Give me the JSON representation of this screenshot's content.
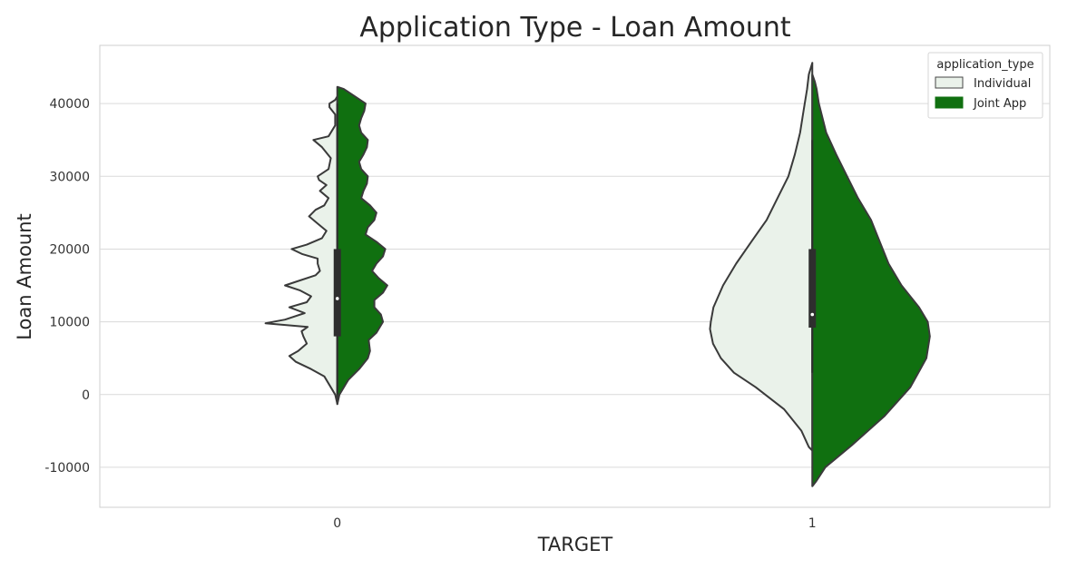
{
  "chart_data": {
    "type": "violin",
    "split": true,
    "title": "Application Type - Loan Amount",
    "xlabel": "TARGET",
    "ylabel": "Loan Amount",
    "categories": [
      "0",
      "1"
    ],
    "ylim": [
      -15500,
      48000
    ],
    "yticks": [
      -10000,
      0,
      10000,
      20000,
      30000,
      40000
    ],
    "ytick_labels": [
      "-10000",
      "0",
      "10000",
      "20000",
      "30000",
      "40000"
    ],
    "grid": true,
    "legend": {
      "title": "application_type",
      "position": "top-right",
      "entries": [
        "Individual",
        "Joint App"
      ]
    },
    "series": [
      {
        "name": "Individual",
        "color": "#eaf2ea",
        "side": "left",
        "violins": [
          {
            "category": "0",
            "y_min": -1300,
            "y_max": 41000,
            "profile": [
              [
                -1300,
                0.0
              ],
              [
                0,
                0.05
              ],
              [
                2500,
                0.3
              ],
              [
                3500,
                0.6
              ],
              [
                4500,
                0.95
              ],
              [
                5300,
                1.1
              ],
              [
                6000,
                0.9
              ],
              [
                7000,
                0.7
              ],
              [
                8000,
                0.78
              ],
              [
                8700,
                0.82
              ],
              [
                9300,
                0.68
              ],
              [
                9800,
                1.65
              ],
              [
                10300,
                1.2
              ],
              [
                11200,
                0.75
              ],
              [
                12000,
                1.1
              ],
              [
                12700,
                0.7
              ],
              [
                13500,
                0.6
              ],
              [
                14300,
                0.85
              ],
              [
                15000,
                1.2
              ],
              [
                15500,
                0.95
              ],
              [
                16400,
                0.5
              ],
              [
                17000,
                0.4
              ],
              [
                18000,
                0.45
              ],
              [
                18700,
                0.45
              ],
              [
                19300,
                0.8
              ],
              [
                20000,
                1.05
              ],
              [
                20600,
                0.7
              ],
              [
                21500,
                0.35
              ],
              [
                22500,
                0.25
              ],
              [
                23500,
                0.45
              ],
              [
                24500,
                0.65
              ],
              [
                25400,
                0.5
              ],
              [
                26000,
                0.3
              ],
              [
                27000,
                0.2
              ],
              [
                28000,
                0.4
              ],
              [
                28800,
                0.25
              ],
              [
                29500,
                0.42
              ],
              [
                30000,
                0.45
              ],
              [
                31000,
                0.2
              ],
              [
                32500,
                0.15
              ],
              [
                34000,
                0.35
              ],
              [
                35000,
                0.55
              ],
              [
                35500,
                0.2
              ],
              [
                37000,
                0.05
              ],
              [
                38500,
                0.05
              ],
              [
                39500,
                0.18
              ],
              [
                40000,
                0.18
              ],
              [
                40500,
                0.05
              ],
              [
                41000,
                0.0
              ]
            ]
          },
          {
            "category": "1",
            "y_min": -7700,
            "y_max": 45600,
            "profile": [
              [
                -7700,
                0.0
              ],
              [
                -7200,
                0.08
              ],
              [
                -5000,
                0.25
              ],
              [
                -2000,
                0.65
              ],
              [
                1000,
                1.3
              ],
              [
                3000,
                1.8
              ],
              [
                5000,
                2.1
              ],
              [
                7000,
                2.28
              ],
              [
                9000,
                2.35
              ],
              [
                10000,
                2.33
              ],
              [
                12000,
                2.27
              ],
              [
                15000,
                2.05
              ],
              [
                18000,
                1.75
              ],
              [
                21000,
                1.4
              ],
              [
                24000,
                1.05
              ],
              [
                27000,
                0.8
              ],
              [
                30000,
                0.55
              ],
              [
                33000,
                0.4
              ],
              [
                36000,
                0.28
              ],
              [
                39000,
                0.2
              ],
              [
                42000,
                0.12
              ],
              [
                44000,
                0.08
              ],
              [
                45600,
                0.0
              ]
            ]
          }
        ]
      },
      {
        "name": "Joint App",
        "color": "#107010",
        "side": "right",
        "violins": [
          {
            "category": "0",
            "y_min": -1300,
            "y_max": 42300,
            "profile": [
              [
                -1300,
                0.0
              ],
              [
                0,
                0.05
              ],
              [
                2000,
                0.25
              ],
              [
                3500,
                0.5
              ],
              [
                5000,
                0.7
              ],
              [
                6000,
                0.75
              ],
              [
                7500,
                0.72
              ],
              [
                8500,
                0.9
              ],
              [
                10000,
                1.05
              ],
              [
                11000,
                1.0
              ],
              [
                12000,
                0.85
              ],
              [
                13000,
                0.85
              ],
              [
                14000,
                1.05
              ],
              [
                15000,
                1.15
              ],
              [
                16000,
                0.95
              ],
              [
                17000,
                0.8
              ],
              [
                18000,
                0.9
              ],
              [
                19000,
                1.05
              ],
              [
                20000,
                1.1
              ],
              [
                21000,
                0.9
              ],
              [
                22000,
                0.65
              ],
              [
                23000,
                0.7
              ],
              [
                24000,
                0.85
              ],
              [
                25000,
                0.9
              ],
              [
                26000,
                0.75
              ],
              [
                27000,
                0.55
              ],
              [
                28000,
                0.6
              ],
              [
                29000,
                0.68
              ],
              [
                30000,
                0.7
              ],
              [
                31000,
                0.55
              ],
              [
                32000,
                0.5
              ],
              [
                33000,
                0.6
              ],
              [
                34000,
                0.68
              ],
              [
                35000,
                0.7
              ],
              [
                36000,
                0.55
              ],
              [
                37000,
                0.5
              ],
              [
                38000,
                0.55
              ],
              [
                39000,
                0.62
              ],
              [
                40000,
                0.65
              ],
              [
                41000,
                0.4
              ],
              [
                42000,
                0.15
              ],
              [
                42300,
                0.0
              ]
            ]
          },
          {
            "category": "1",
            "y_min": -12600,
            "y_max": 44000,
            "profile": [
              [
                -12600,
                0.0
              ],
              [
                -12000,
                0.08
              ],
              [
                -10000,
                0.3
              ],
              [
                -7000,
                0.9
              ],
              [
                -3000,
                1.65
              ],
              [
                1000,
                2.25
              ],
              [
                5000,
                2.62
              ],
              [
                8000,
                2.7
              ],
              [
                10000,
                2.65
              ],
              [
                12000,
                2.45
              ],
              [
                15000,
                2.05
              ],
              [
                18000,
                1.75
              ],
              [
                21000,
                1.55
              ],
              [
                24000,
                1.35
              ],
              [
                27000,
                1.05
              ],
              [
                30000,
                0.8
              ],
              [
                33000,
                0.55
              ],
              [
                36000,
                0.32
              ],
              [
                40000,
                0.15
              ],
              [
                42000,
                0.1
              ],
              [
                43000,
                0.06
              ],
              [
                44000,
                0.0
              ]
            ]
          }
        ]
      }
    ],
    "inner_box": [
      {
        "category": "0",
        "q1": 8000,
        "median": 13200,
        "q3": 20000,
        "whisker_low": 0,
        "whisker_high": 40000
      },
      {
        "category": "1",
        "q1": 9200,
        "median": 11000,
        "q3": 20000,
        "whisker_low": 3000,
        "whisker_high": 35000
      }
    ]
  }
}
